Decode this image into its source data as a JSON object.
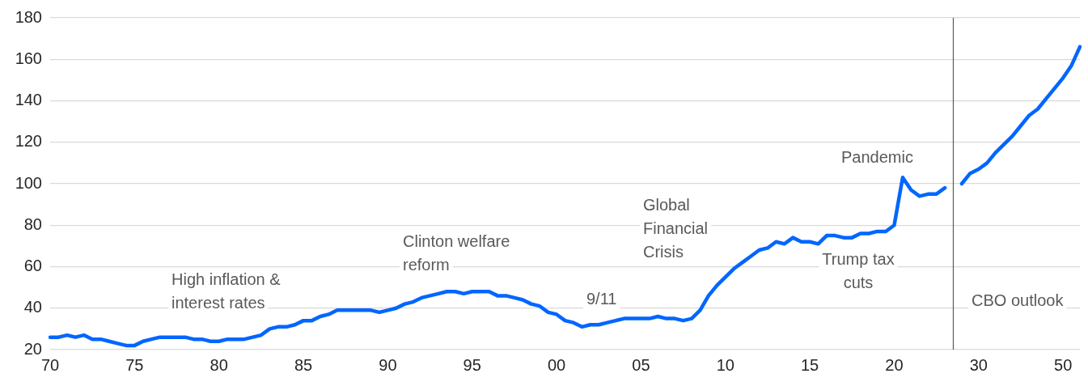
{
  "chart_data": {
    "type": "line",
    "categories": [
      "70",
      null,
      null,
      null,
      null,
      null,
      null,
      null,
      null,
      null,
      "75",
      null,
      null,
      null,
      null,
      null,
      null,
      null,
      null,
      null,
      "80",
      null,
      null,
      null,
      null,
      null,
      null,
      null,
      null,
      null,
      "85",
      null,
      null,
      null,
      null,
      null,
      null,
      null,
      null,
      null,
      "90",
      null,
      null,
      null,
      null,
      null,
      null,
      null,
      null,
      null,
      "95",
      null,
      null,
      null,
      null,
      null,
      null,
      null,
      null,
      null,
      "00",
      null,
      null,
      null,
      null,
      null,
      null,
      null,
      null,
      null,
      "05",
      null,
      null,
      null,
      null,
      null,
      null,
      null,
      null,
      null,
      "10",
      null,
      null,
      null,
      null,
      null,
      null,
      null,
      null,
      null,
      "15",
      null,
      null,
      null,
      null,
      null,
      null,
      null,
      null,
      null,
      "20",
      null,
      null,
      null,
      null,
      null,
      null,
      null,
      null,
      null,
      "30",
      null,
      null,
      null,
      null,
      null,
      null,
      null,
      null,
      null,
      "50",
      null,
      null
    ],
    "series": [
      {
        "color": "#0066ff",
        "values": [
          26,
          26,
          27,
          26,
          27,
          25,
          25,
          24,
          23,
          22,
          22,
          24,
          25,
          26,
          26,
          26,
          26,
          25,
          25,
          24,
          24,
          25,
          25,
          25,
          26,
          27,
          30,
          31,
          31,
          32,
          34,
          34,
          36,
          37,
          39,
          39,
          39,
          39,
          39,
          38,
          39,
          40,
          42,
          43,
          45,
          46,
          47,
          48,
          48,
          47,
          48,
          48,
          48,
          46,
          46,
          45,
          44,
          42,
          41,
          38,
          37,
          34,
          33,
          31,
          32,
          32,
          33,
          34,
          35,
          35,
          35,
          35,
          36,
          35,
          35,
          34,
          35,
          39,
          46,
          51,
          55,
          59,
          62,
          65,
          68,
          69,
          72,
          71,
          74,
          72,
          72,
          71,
          75,
          75,
          74,
          74,
          76,
          76,
          77,
          77,
          80,
          103,
          97,
          94,
          95,
          95,
          98,
          null,
          null,
          null,
          null,
          null,
          null,
          null,
          null,
          null,
          null,
          null,
          null,
          null,
          null,
          null,
          null
        ]
      },
      {
        "color": "#0066ff",
        "values": [
          null,
          null,
          null,
          null,
          null,
          null,
          null,
          null,
          null,
          null,
          null,
          null,
          null,
          null,
          null,
          null,
          null,
          null,
          null,
          null,
          null,
          null,
          null,
          null,
          null,
          null,
          null,
          null,
          null,
          null,
          null,
          null,
          null,
          null,
          null,
          null,
          null,
          null,
          null,
          null,
          null,
          null,
          null,
          null,
          null,
          null,
          null,
          null,
          null,
          null,
          null,
          null,
          null,
          null,
          null,
          null,
          null,
          null,
          null,
          null,
          null,
          null,
          null,
          null,
          null,
          null,
          null,
          null,
          null,
          null,
          null,
          null,
          null,
          null,
          null,
          null,
          null,
          null,
          null,
          null,
          null,
          null,
          null,
          null,
          null,
          null,
          null,
          null,
          null,
          null,
          null,
          null,
          null,
          null,
          null,
          null,
          null,
          null,
          null,
          null,
          null,
          null,
          null,
          null,
          null,
          null,
          null,
          null,
          100,
          105,
          107,
          110,
          115,
          119,
          123,
          128,
          133,
          136,
          141,
          146,
          151,
          157,
          166
        ]
      }
    ],
    "ylim": [
      20,
      180
    ],
    "yticks": [
      20,
      40,
      60,
      80,
      100,
      120,
      140,
      160,
      180
    ],
    "grid": "y",
    "legend": false,
    "marker": "none",
    "line_style": "solid",
    "annotations": [
      "High inflation & interest rates",
      "Clinton welfare reform",
      "9/11",
      "Global Financial Crisis",
      "Pandemic",
      "Trump tax cuts",
      "CBO outlook"
    ]
  }
}
